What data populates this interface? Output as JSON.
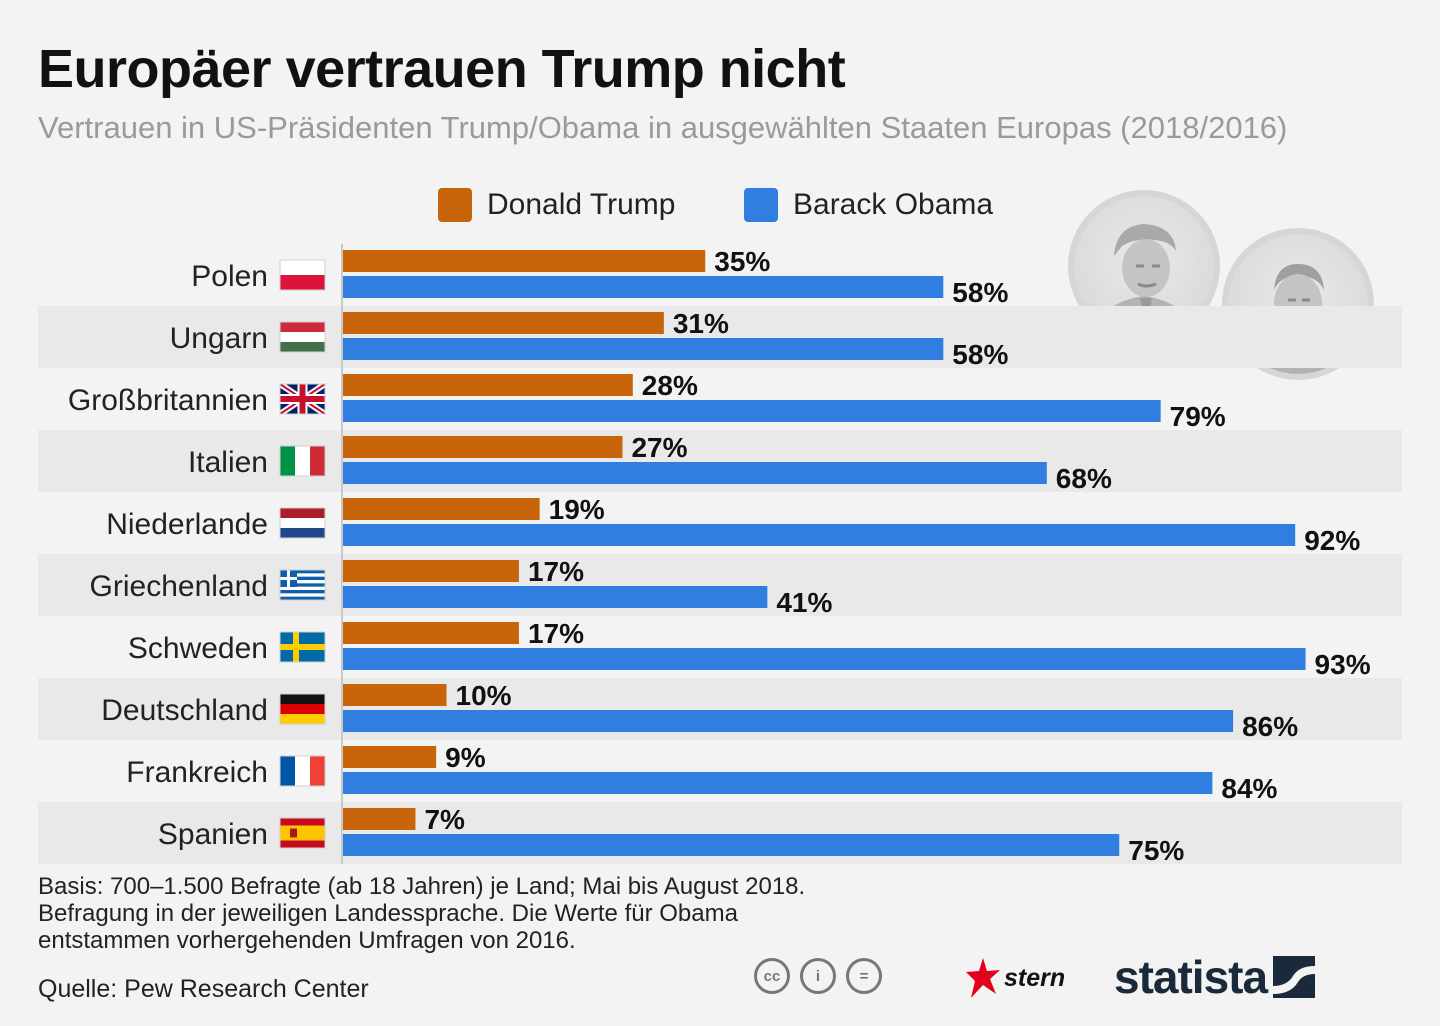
{
  "header": {
    "title": "Europäer vertrauen Trump nicht",
    "subtitle": "Vertrauen in US-Präsidenten Trump/Obama in ausgewählten Staaten Europas (2018/2016)"
  },
  "legend": {
    "trump": "Donald Trump",
    "obama": "Barack Obama"
  },
  "colors": {
    "trump": "#c8650b",
    "obama": "#2f7ee0",
    "band": "#e9e9e9"
  },
  "chart_data": {
    "type": "bar",
    "orientation": "horizontal",
    "title": "Europäer vertrauen Trump nicht",
    "subtitle": "Vertrauen in US-Präsidenten Trump/Obama in ausgewählten Staaten Europas (2018/2016)",
    "unit": "%",
    "xlim": [
      0,
      100
    ],
    "categories": [
      "Polen",
      "Ungarn",
      "Großbritannien",
      "Italien",
      "Niederlande",
      "Griechenland",
      "Schweden",
      "Deutschland",
      "Frankreich",
      "Spanien"
    ],
    "series": [
      {
        "name": "Donald Trump",
        "values": [
          35,
          31,
          28,
          27,
          19,
          17,
          17,
          10,
          9,
          7
        ]
      },
      {
        "name": "Barack Obama",
        "values": [
          58,
          58,
          79,
          68,
          92,
          41,
          93,
          86,
          84,
          75
        ]
      }
    ],
    "flags": [
      "poland",
      "hungary",
      "uk",
      "italy",
      "netherlands",
      "greece",
      "sweden",
      "germany",
      "france",
      "spain"
    ],
    "legend_position": "top-center"
  },
  "footer": {
    "note_lines": [
      "Basis: 700–1.500 Befragte (ab 18 Jahren) je Land; Mai bis August 2018.",
      "Befragung in der jeweiligen Landessprache. Die Werte für Obama",
      "entstammen vorhergehenden Umfragen von 2016."
    ],
    "source": "Quelle: Pew Research Center",
    "cc_icons": [
      "cc-icon",
      "by-icon",
      "nd-icon"
    ],
    "cc_glyphs": [
      "cc",
      "i",
      "="
    ],
    "stern": "stern",
    "statista": "statista"
  }
}
